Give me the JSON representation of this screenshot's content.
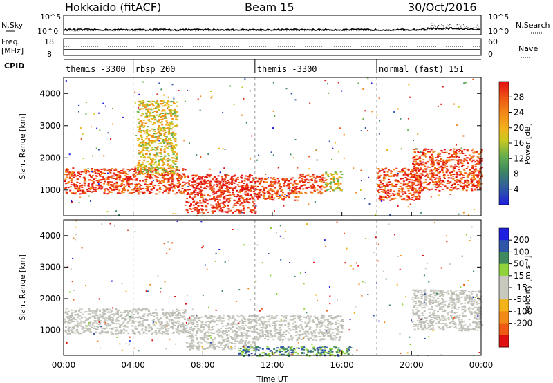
{
  "header": {
    "title": "Hokkaido (fitACF)",
    "beam": "Beam 15",
    "date": "30/Oct/2016"
  },
  "top_strip": {
    "nsky_label": "N.Sky",
    "nsky_ticks": [
      "10^5",
      "10^0"
    ],
    "nsearch_label": "N.Search",
    "nsearch_ticks": [
      "10^5",
      "10^0"
    ],
    "freq_label": "Freq.",
    "freq_unit": "[MHz]",
    "freq_ticks": [
      "18",
      "8"
    ],
    "nave_label": "Nave",
    "nave_ticks": [
      "60",
      "0"
    ],
    "cpid_label": "CPID"
  },
  "cpid_segments": [
    {
      "label": "themis -3300",
      "start_hour": 0
    },
    {
      "label": "rbsp 200",
      "start_hour": 4
    },
    {
      "label": "themis -3300",
      "start_hour": 11
    },
    {
      "label": "normal (fast) 151",
      "start_hour": 18
    }
  ],
  "colors": {
    "power_scale": [
      "#1f1fe0",
      "#2f55a8",
      "#3e8a5e",
      "#6ab04a",
      "#c9c820",
      "#f1b21a",
      "#f28a18",
      "#ee5a14",
      "#e8291a",
      "#e01010"
    ],
    "velocity_scale": [
      "#e01010",
      "#ee5a14",
      "#f28a18",
      "#f1b21a",
      "#c8c8bf",
      "#c8c8bf",
      "#8fd23a",
      "#3e8a5e",
      "#2f55a8",
      "#1f1fe0"
    ],
    "ground_scatter": "#bdbdb5"
  },
  "chart_data": [
    {
      "type": "heatmap",
      "title": "",
      "xlabel": "",
      "ylabel": "Slant Range [km]",
      "x_range": [
        "00:00",
        "24:00"
      ],
      "ylim": [
        200,
        4500
      ],
      "yticks": [
        "1000",
        "2000",
        "3000",
        "4000"
      ],
      "colorbar": {
        "label": "Power [dB]",
        "range": [
          0,
          32
        ],
        "ticks": [
          "4",
          "8",
          "12",
          "16",
          "20",
          "24",
          "28"
        ]
      },
      "regions": [
        {
          "hours": [
            0.0,
            7.0
          ],
          "range_km": [
            900,
            1700
          ],
          "level": "high"
        },
        {
          "hours": [
            4.2,
            6.5
          ],
          "range_km": [
            1500,
            3800
          ],
          "level": "medium"
        },
        {
          "hours": [
            7.0,
            11.0
          ],
          "range_km": [
            300,
            1500
          ],
          "level": "very high"
        },
        {
          "hours": [
            11.0,
            13.5
          ],
          "range_km": [
            700,
            1400
          ],
          "level": "high"
        },
        {
          "hours": [
            13.5,
            15.0
          ],
          "range_km": [
            900,
            1500
          ],
          "level": "high"
        },
        {
          "hours": [
            15.0,
            16.0
          ],
          "range_km": [
            1000,
            1600
          ],
          "level": "medium"
        },
        {
          "hours": [
            18.0,
            20.5
          ],
          "range_km": [
            700,
            1700
          ],
          "level": "high"
        },
        {
          "hours": [
            20.0,
            24.0
          ],
          "range_km": [
            1000,
            2300
          ],
          "level": "high"
        }
      ]
    },
    {
      "type": "heatmap",
      "title": "",
      "xlabel": "Time UT",
      "ylabel": "Slant Range [km]",
      "x_range": [
        "00:00",
        "24:00"
      ],
      "xticks": [
        "00:00",
        "04:00",
        "08:00",
        "12:00",
        "16:00",
        "20:00",
        "00:00"
      ],
      "ylim": [
        200,
        4500
      ],
      "yticks": [
        "1000",
        "2000",
        "3000",
        "4000"
      ],
      "colorbar": {
        "label": "Velocity [m s⁻¹]",
        "range": [
          -250,
          250
        ],
        "ticks": [
          "200",
          "100",
          "50",
          "15",
          "-15",
          "-50",
          "-100",
          "-200"
        ]
      },
      "regions": [
        {
          "hours": [
            0.0,
            7.0
          ],
          "range_km": [
            900,
            1700
          ],
          "level": "ground scatter"
        },
        {
          "hours": [
            7.0,
            11.0
          ],
          "range_km": [
            400,
            1500
          ],
          "level": "ground scatter"
        },
        {
          "hours": [
            11.0,
            16.0
          ],
          "range_km": [
            700,
            1500
          ],
          "level": "ground scatter"
        },
        {
          "hours": [
            20.0,
            24.0
          ],
          "range_km": [
            1000,
            2300
          ],
          "level": "ground scatter"
        },
        {
          "hours": [
            10.0,
            16.5
          ],
          "range_km": [
            200,
            500
          ],
          "level": "positive velocity"
        }
      ]
    }
  ]
}
